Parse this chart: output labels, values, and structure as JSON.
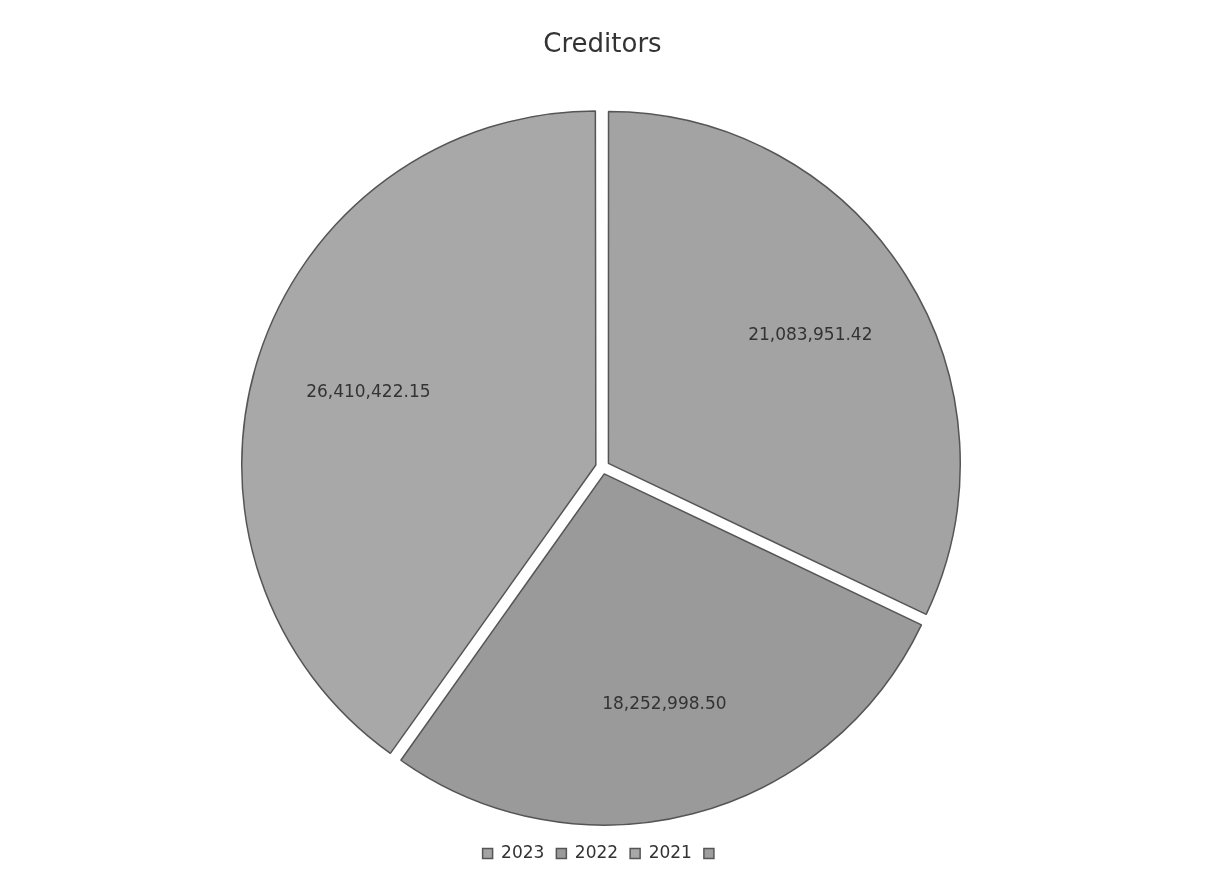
{
  "chart_data": {
    "type": "pie",
    "title": "Creditors",
    "categories": [
      "2023",
      "2022",
      "2021",
      null
    ],
    "values": [
      21083951.42,
      18252998.5,
      26410422.15,
      0
    ],
    "colors": [
      "#a3a3a3",
      "#9a9a9a",
      "#a8a8a8",
      "#9e9e9e"
    ],
    "value_labels": [
      "21,083,951.42",
      "18,252,998.50",
      "26,410,422.15",
      null
    ],
    "legend": "bottom"
  }
}
